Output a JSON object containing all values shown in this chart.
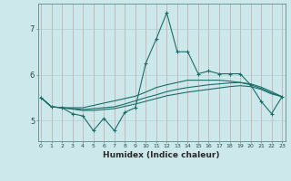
{
  "xlabel": "Humidex (Indice chaleur)",
  "bg_color": "#cce8ea",
  "grid_color": "#b0d0d4",
  "line_color": "#1a6e6a",
  "x_values": [
    0,
    1,
    2,
    3,
    4,
    5,
    6,
    7,
    8,
    9,
    10,
    11,
    12,
    13,
    14,
    15,
    16,
    17,
    18,
    19,
    20,
    21,
    22,
    23
  ],
  "line1": [
    5.5,
    5.3,
    5.28,
    5.15,
    5.1,
    4.78,
    5.05,
    4.78,
    5.18,
    5.28,
    6.25,
    6.78,
    7.35,
    6.5,
    6.5,
    6.02,
    6.08,
    6.02,
    6.02,
    6.02,
    5.78,
    5.42,
    5.15,
    5.52
  ],
  "line2": [
    5.5,
    5.3,
    5.28,
    5.28,
    5.28,
    5.33,
    5.38,
    5.43,
    5.48,
    5.53,
    5.62,
    5.72,
    5.78,
    5.83,
    5.88,
    5.88,
    5.88,
    5.88,
    5.86,
    5.83,
    5.78,
    5.7,
    5.6,
    5.52
  ],
  "line3": [
    5.5,
    5.3,
    5.28,
    5.26,
    5.24,
    5.26,
    5.28,
    5.3,
    5.36,
    5.43,
    5.5,
    5.56,
    5.63,
    5.68,
    5.72,
    5.75,
    5.78,
    5.8,
    5.82,
    5.83,
    5.8,
    5.73,
    5.63,
    5.52
  ],
  "line4": [
    5.5,
    5.3,
    5.28,
    5.25,
    5.22,
    5.22,
    5.24,
    5.26,
    5.31,
    5.36,
    5.42,
    5.48,
    5.54,
    5.58,
    5.62,
    5.65,
    5.68,
    5.71,
    5.74,
    5.76,
    5.74,
    5.68,
    5.58,
    5.52
  ],
  "ylim": [
    4.55,
    7.55
  ],
  "yticks": [
    5,
    6,
    7
  ],
  "xticks": [
    0,
    1,
    2,
    3,
    4,
    5,
    6,
    7,
    8,
    9,
    10,
    11,
    12,
    13,
    14,
    15,
    16,
    17,
    18,
    19,
    20,
    21,
    22,
    23
  ]
}
